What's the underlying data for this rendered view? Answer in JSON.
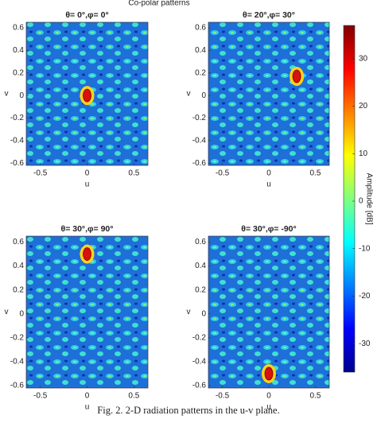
{
  "title": "Co-polar patterns",
  "caption": "Fig. 2.  2-D radiation patterns in the u-v plane.",
  "colorbar": {
    "label": "Amplitude [dB]",
    "clim": [
      -36,
      37
    ],
    "ticks": [
      -30,
      -20,
      -10,
      0,
      10,
      20,
      30
    ],
    "colors": [
      "#00008f",
      "#0000ff",
      "#0080ff",
      "#00ffff",
      "#80ff80",
      "#ffff00",
      "#ff8000",
      "#ff0000",
      "#800000"
    ]
  },
  "chart_data": [
    {
      "type": "heatmap",
      "title": "θ= 0°,φ= 0°",
      "xlabel": "u",
      "ylabel": "v",
      "xlim": [
        -0.65,
        0.65
      ],
      "ylim": [
        -0.62,
        0.65
      ],
      "xticks": [
        -0.5,
        0,
        0.5
      ],
      "yticks": [
        -0.6,
        -0.4,
        -0.2,
        0,
        0.2,
        0.4,
        0.6
      ],
      "peak": {
        "u": 0,
        "v": 0,
        "value": 35
      }
    },
    {
      "type": "heatmap",
      "title": "θ= 20°,φ= 30°",
      "xlabel": "u",
      "ylabel": "v",
      "xlim": [
        -0.65,
        0.65
      ],
      "ylim": [
        -0.62,
        0.65
      ],
      "xticks": [
        -0.5,
        0,
        0.5
      ],
      "yticks": [
        -0.6,
        -0.4,
        -0.2,
        0,
        0.2,
        0.4,
        0.6
      ],
      "peak": {
        "u": 0.3,
        "v": 0.17,
        "value": 35
      }
    },
    {
      "type": "heatmap",
      "title": "θ= 30°,φ= 90°",
      "xlabel": "u",
      "ylabel": "v",
      "xlim": [
        -0.65,
        0.65
      ],
      "ylim": [
        -0.62,
        0.65
      ],
      "xticks": [
        -0.5,
        0,
        0.5
      ],
      "yticks": [
        -0.6,
        -0.4,
        -0.2,
        0,
        0.2,
        0.4,
        0.6
      ],
      "peak": {
        "u": 0,
        "v": 0.5,
        "value": 35
      }
    },
    {
      "type": "heatmap",
      "title": "θ= 30°,φ= -90°",
      "xlabel": "u",
      "ylabel": "v",
      "xlim": [
        -0.65,
        0.65
      ],
      "ylim": [
        -0.62,
        0.65
      ],
      "xticks": [
        -0.5,
        0,
        0.5
      ],
      "yticks": [
        -0.6,
        -0.4,
        -0.2,
        0,
        0.2,
        0.4,
        0.6
      ],
      "peak": {
        "u": 0,
        "v": -0.5,
        "value": 35
      }
    }
  ]
}
